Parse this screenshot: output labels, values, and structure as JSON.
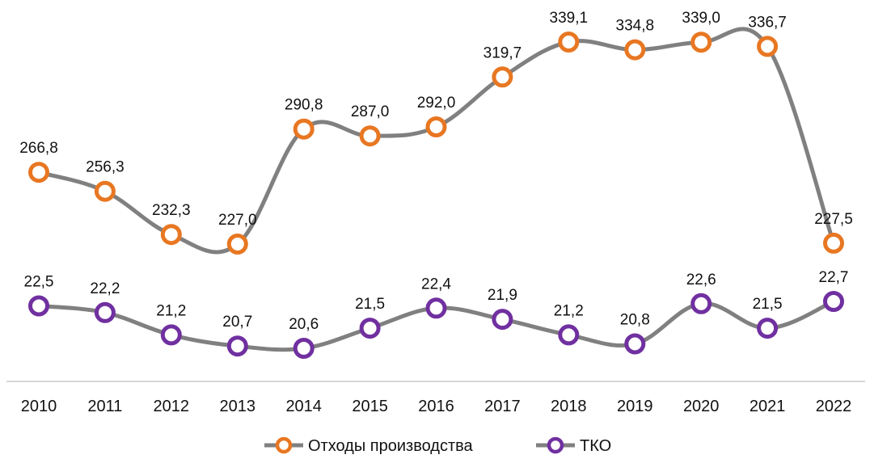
{
  "chart_data": {
    "type": "line",
    "title": "",
    "xlabel": "",
    "ylabel": "",
    "categories": [
      "2010",
      "2011",
      "2012",
      "2013",
      "2014",
      "2015",
      "2016",
      "2017",
      "2018",
      "2019",
      "2020",
      "2021",
      "2022"
    ],
    "series": [
      {
        "name": "Отходы производства",
        "color": "#E87722",
        "values": [
          266.8,
          256.3,
          232.3,
          227.0,
          290.8,
          287.0,
          292.0,
          319.7,
          339.1,
          334.8,
          339.0,
          336.7,
          227.5
        ],
        "labels": [
          "266,8",
          "256,3",
          "232,3",
          "227,0",
          "290,8",
          "287,0",
          "292,0",
          "319,7",
          "339,1",
          "334,8",
          "339,0",
          "336,7",
          "227,5"
        ]
      },
      {
        "name": "ТКО",
        "color": "#7030A0",
        "values": [
          22.5,
          22.2,
          21.2,
          20.7,
          20.6,
          21.5,
          22.4,
          21.9,
          21.2,
          20.8,
          22.6,
          21.5,
          22.7
        ],
        "labels": [
          "22,5",
          "22,2",
          "21,2",
          "20,7",
          "20,6",
          "21,5",
          "22,4",
          "21,9",
          "21,2",
          "20,8",
          "22,6",
          "21,5",
          "22,7"
        ]
      }
    ],
    "line_color": "#808080",
    "legend_position": "bottom",
    "grid": false,
    "y_axis_visible": false
  }
}
